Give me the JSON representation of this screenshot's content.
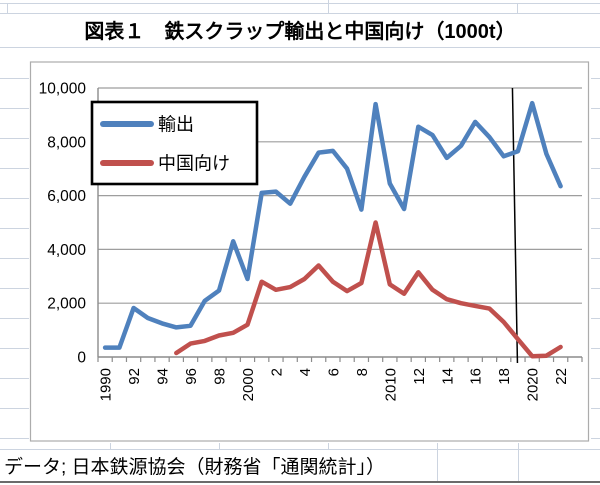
{
  "sheet": {
    "title": "図表１　鉄スクラップ輸出と中国向け（1000t）",
    "source_note": "データ; 日本鉄源協会（財務省「通関統計」）"
  },
  "chart_data": {
    "type": "line",
    "title": "図表１　鉄スクラップ輸出と中国向け（1000t）",
    "unit": "1000t",
    "x": [
      1990,
      1991,
      1992,
      1993,
      1994,
      1995,
      1996,
      1997,
      1998,
      1999,
      2000,
      2001,
      2002,
      2003,
      2004,
      2005,
      2006,
      2007,
      2008,
      2009,
      2010,
      2011,
      2012,
      2013,
      2014,
      2015,
      2016,
      2017,
      2018,
      2019,
      2020,
      2021,
      2022
    ],
    "x_tick_labels": [
      "1990",
      "92",
      "94",
      "96",
      "98",
      "2000",
      "2",
      "4",
      "6",
      "8",
      "2010",
      "12",
      "14",
      "16",
      "18",
      "2020",
      "22"
    ],
    "series": [
      {
        "id": "exports",
        "name": "輸出",
        "color": "#4F81BD",
        "values": [
          350,
          350,
          1820,
          1450,
          1250,
          1100,
          1160,
          2090,
          2470,
          4300,
          2900,
          6100,
          6150,
          5700,
          6700,
          7600,
          7660,
          7000,
          5480,
          9400,
          6450,
          5500,
          8560,
          8250,
          7400,
          7850,
          8740,
          8170,
          7460,
          7650,
          9440,
          7550,
          6350
        ]
      },
      {
        "id": "china",
        "name": "中国向け",
        "color": "#C0504D",
        "values": [
          null,
          null,
          null,
          null,
          null,
          150,
          500,
          600,
          800,
          900,
          1200,
          2800,
          2500,
          2600,
          2900,
          3400,
          2800,
          2450,
          2750,
          5000,
          2700,
          2350,
          3150,
          2500,
          2150,
          2000,
          1900,
          1800,
          1300,
          660,
          30,
          50,
          370
        ]
      }
    ],
    "ylim": [
      0,
      10000
    ],
    "y_tick_step": 2000,
    "y_tick_labels": [
      "0",
      "2,000",
      "4,000",
      "6,000",
      "8,000",
      "10,000"
    ],
    "grid": true,
    "legend_position": "upper-left",
    "annotation": {
      "type": "vertical-line",
      "year": 2019
    },
    "source": "データ; 日本鉄源協会（財務省「通関統計」）"
  },
  "colors": {
    "export_line": "#4F81BD",
    "china_line": "#C0504D",
    "plot_gridline": "#9E9E9E",
    "axis_line": "#8C8C8C",
    "chart_border": "#ACACAC",
    "legend_border": "#000000",
    "annotation_line": "#000000",
    "sheet_gridline": "#CCD4E0"
  }
}
